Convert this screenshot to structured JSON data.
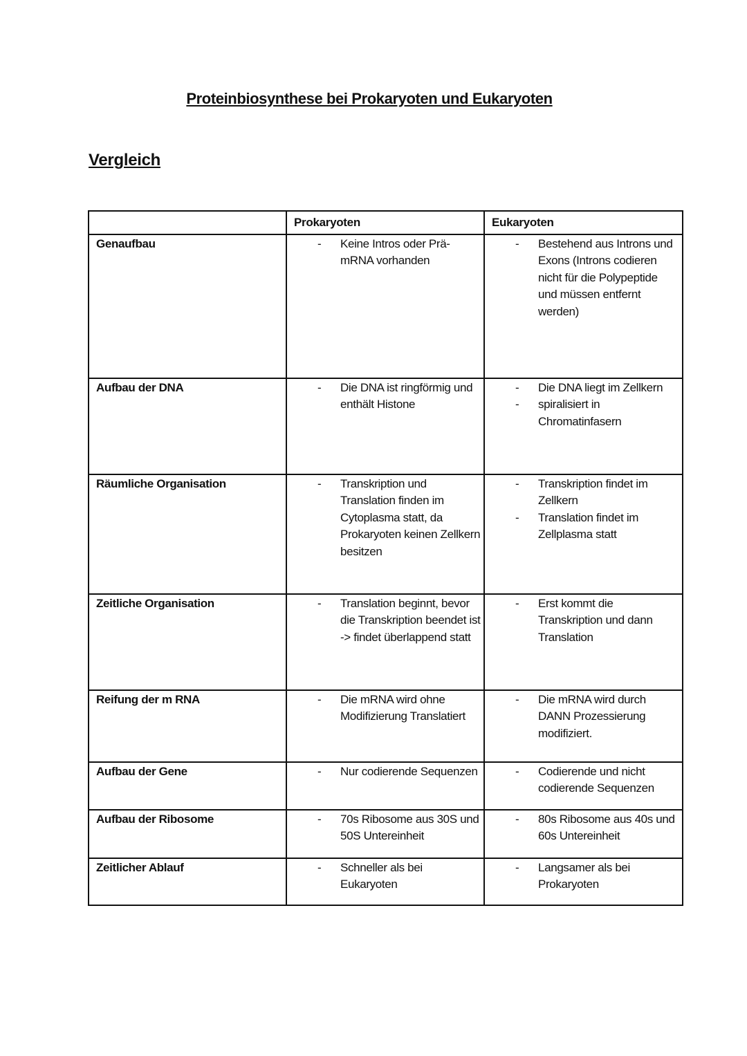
{
  "title": "Proteinbiosynthese bei Prokaryoten und Eukaryoten",
  "subtitle": "Vergleich",
  "table": {
    "headers": [
      "",
      "Prokaryoten",
      "Eukaryoten"
    ],
    "rows": [
      {
        "label": "Genaufbau",
        "pro": [
          "Keine Intros oder Prä-mRNA vorhanden"
        ],
        "eu": [
          "Bestehend aus Introns und Exons (Introns codieren nicht für die Polypeptide und müssen entfernt werden)"
        ]
      },
      {
        "label": "Aufbau der DNA",
        "pro": [
          "Die DNA ist ringförmig und enthält Histone"
        ],
        "eu": [
          "Die DNA liegt im Zellkern",
          "spiralisiert in Chromatinfasern"
        ]
      },
      {
        "label": "Räumliche Organisation",
        "pro": [
          "Transkription und Translation finden im Cytoplasma statt, da Prokaryoten keinen Zellkern besitzen"
        ],
        "eu": [
          "Transkription findet im Zellkern",
          " Translation findet im Zellplasma statt"
        ]
      },
      {
        "label": "Zeitliche Organisation",
        "pro": [
          "Translation beginnt, bevor die Transkription beendet ist -> findet überlappend statt"
        ],
        "eu": [
          "Erst kommt die Transkription und dann Translation"
        ]
      },
      {
        "label": "Reifung der m RNA",
        "pro": [
          "Die mRNA wird ohne Modifizierung Translatiert"
        ],
        "eu": [
          "Die mRNA wird durch DANN Prozessierung modifiziert."
        ]
      },
      {
        "label": "Aufbau der Gene",
        "pro": [
          "Nur codierende Sequenzen"
        ],
        "eu": [
          "Codierende und nicht codierende Sequenzen"
        ]
      },
      {
        "label": "Aufbau der Ribosome",
        "pro": [
          "70s Ribosome aus 30S und 50S Untereinheit"
        ],
        "eu": [
          "80s Ribosome aus 40s und 60s Untereinheit"
        ]
      },
      {
        "label": "Zeitlicher Ablauf",
        "pro": [
          "Schneller als bei Eukaryoten"
        ],
        "eu": [
          "Langsamer als bei Prokaryoten"
        ]
      }
    ]
  }
}
